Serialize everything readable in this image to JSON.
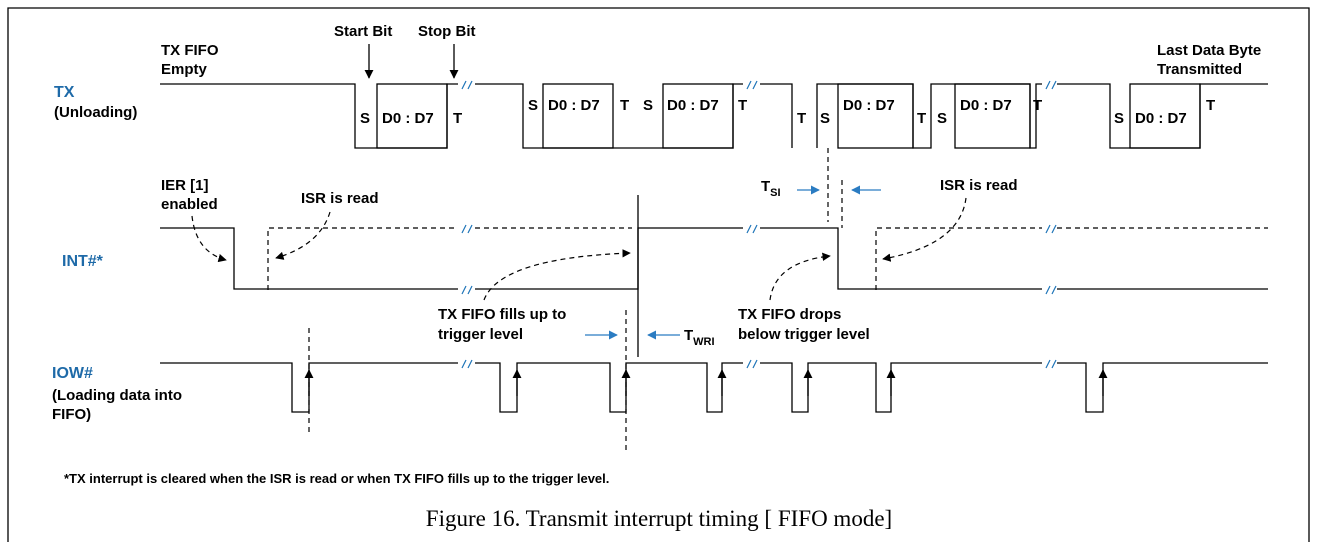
{
  "colors": {
    "signal_label": "#1e6aa8",
    "timing_arrow": "#2b7cc2",
    "wave": "#000000",
    "border": "#000000"
  },
  "signals": {
    "tx": {
      "name": "TX",
      "desc": "(Unloading)"
    },
    "int": {
      "name": "INT#*"
    },
    "iow": {
      "name": "IOW#",
      "desc_line1": "(Loading data into",
      "desc_line2": "FIFO)"
    }
  },
  "annotations": {
    "start_bit": "Start Bit",
    "stop_bit": "Stop Bit",
    "fifo_empty_line1": "TX FIFO",
    "fifo_empty_line2": "Empty",
    "last_byte_line1": "Last Data Byte",
    "last_byte_line2": "Transmitted",
    "ier_line1": "IER [1]",
    "ier_line2": "enabled",
    "isr_read_1": "ISR is read",
    "isr_read_2": "ISR is read",
    "tsi_main": "T",
    "tsi_sub": "SI",
    "twri_main": "T",
    "twri_sub": "WRI",
    "fills_line1": "TX FIFO fills up to",
    "fills_line2": "trigger level",
    "drops_line1": "TX FIFO drops",
    "drops_line2": "below trigger level"
  },
  "bits": {
    "start": "S",
    "data": "D0 : D7",
    "stop": "T"
  },
  "footnote": "*TX interrupt is cleared when the ISR is read or when TX FIFO fills up to the trigger level.",
  "caption": "Figure 16. Transmit interrupt timing [ FIFO mode]"
}
